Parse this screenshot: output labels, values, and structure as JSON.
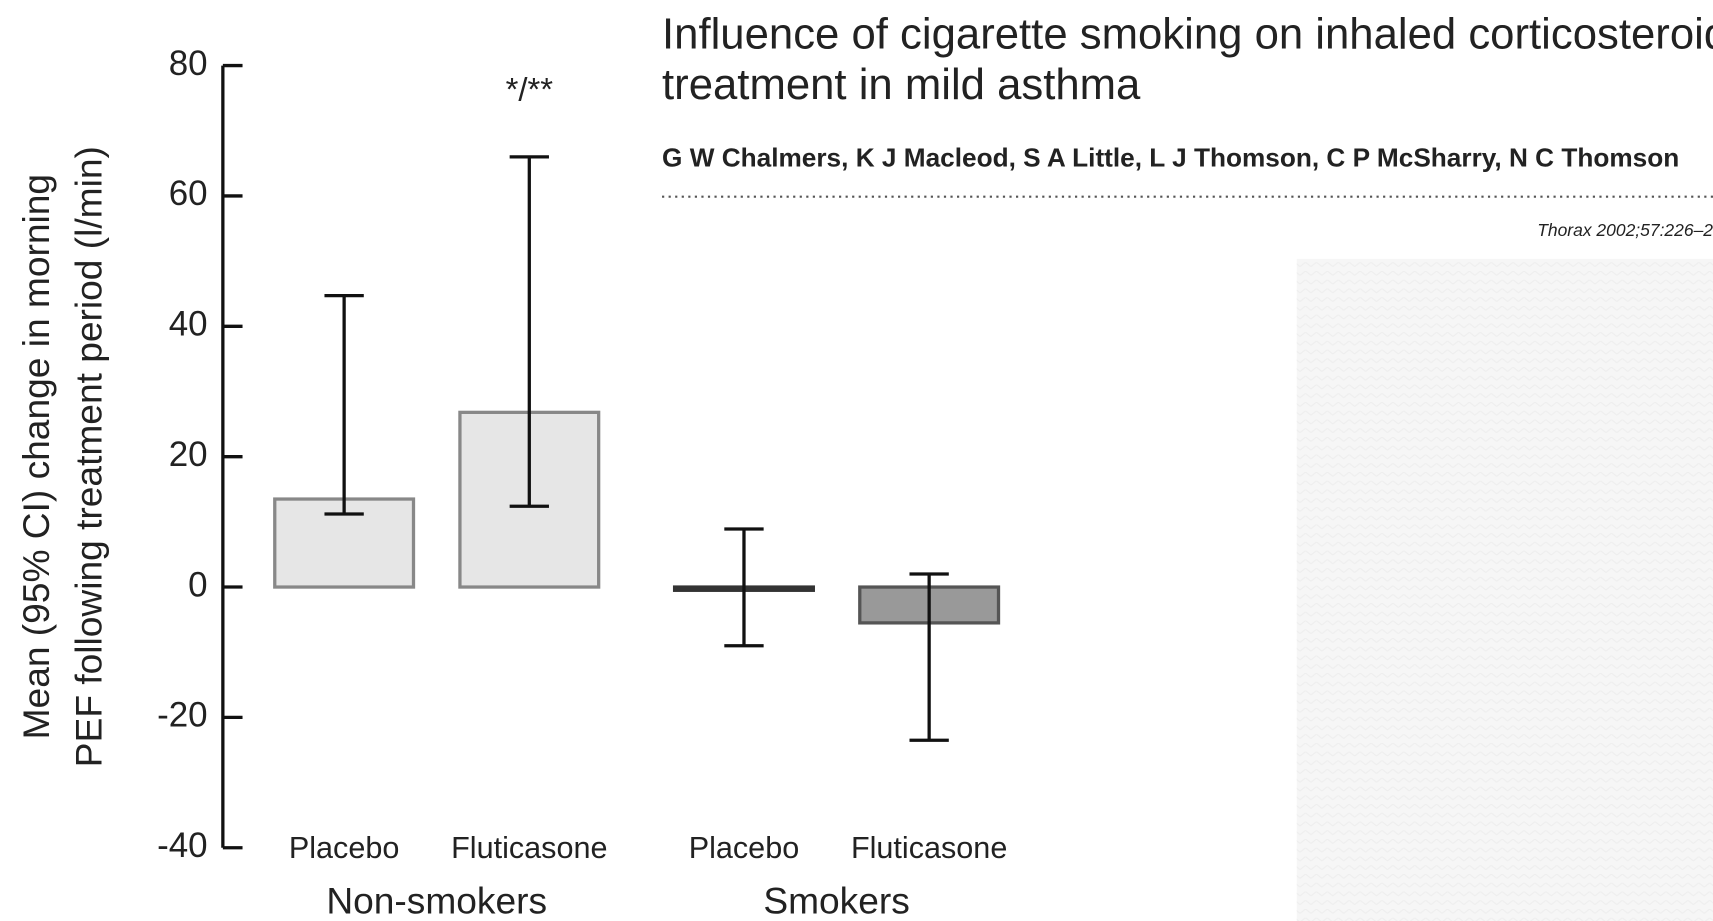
{
  "header": {
    "title_lines": [
      "Influence of cigarette smoking on inhaled corticosteroid",
      "treatment in mild asthma"
    ],
    "authors": "G W Chalmers, K J Macleod, S A Little, L J Thomson, C P McSharry, N C Thomson",
    "citation": "Thorax 2002;57:226–2"
  },
  "chart_data": {
    "type": "bar",
    "ylabel_lines": [
      "Mean (95% CI) change in morning",
      "PEF following treatment period (l/min)"
    ],
    "categories": [
      "Placebo",
      "Fluticasone",
      "Placebo",
      "Fluticasone"
    ],
    "groups": [
      "Non-smokers",
      "Smokers"
    ],
    "values": [
      13.5,
      26.8,
      -0.5,
      -5.5
    ],
    "ci": [
      [
        11.2,
        44.7
      ],
      [
        12.4,
        66
      ],
      [
        -9,
        8.9
      ],
      [
        -23.5,
        2
      ]
    ],
    "colors": [
      "#e6e6e6",
      "#e6e6e6",
      "#444444",
      "#999999"
    ],
    "annotations": [
      {
        "text": "*/**",
        "category": 1
      }
    ],
    "ylim": [
      -40,
      80
    ],
    "yticks": [
      -40,
      -20,
      0,
      20,
      40,
      60,
      80
    ]
  }
}
